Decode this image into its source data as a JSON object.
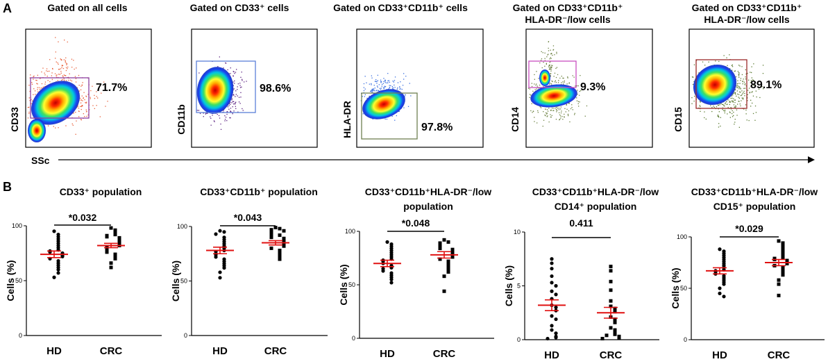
{
  "panel_a": {
    "letter": "A",
    "x_axis_label": "SSc",
    "plots": [
      {
        "title": [
          "Gated on all cells"
        ],
        "ylabel": "CD33",
        "gate_percent": "71.7%"
      },
      {
        "title": [
          "Gated on CD33⁺ cells"
        ],
        "ylabel": "CD11b",
        "gate_percent": "98.6%"
      },
      {
        "title": [
          "Gated on CD33⁺CD11b⁺ cells"
        ],
        "ylabel": "HLA-DR",
        "gate_percent": "97.8%"
      },
      {
        "title": [
          "Gated on CD33⁺CD11b⁺",
          "HLA-DR⁻/low cells"
        ],
        "ylabel": "CD14",
        "gate_percent": "9.3%"
      },
      {
        "title": [
          "Gated on CD33⁺CD11b⁺",
          "HLA-DR⁻/low cells"
        ],
        "ylabel": "CD15",
        "gate_percent": "89.1%"
      }
    ],
    "colors": {
      "gate_1": "#8b3fa0",
      "gate_2": "#5b7fd8",
      "gate_3": "#6e7f52",
      "gate_4": "#c84fc0",
      "gate_5": "#9a2a2a",
      "scatter_1": "#e8603a",
      "scatter_2": "#5a2080",
      "scatter_3": "#3a6fe0",
      "scatter_4": "#6b8040",
      "scatter_5": "#5a7a30"
    }
  },
  "panel_b": {
    "letter": "B",
    "ylabel": "Cells (%)",
    "mean_color": "#e01010",
    "point_color": "#000000"
  },
  "chart_data": [
    {
      "type": "scatter",
      "title": "CD33⁺ population",
      "xlabel": "",
      "ylabel": "Cells (%)",
      "categories": [
        "HD",
        "CRC"
      ],
      "ylim": [
        0,
        100
      ],
      "yticks": [
        0,
        50,
        100
      ],
      "p_value": "*0.032",
      "series": [
        {
          "name": "HD",
          "mean": 74,
          "sem": 3,
          "values": [
            95,
            92,
            90,
            88,
            86,
            84,
            82,
            80,
            78,
            77,
            76,
            75,
            74,
            73,
            72,
            70,
            68,
            66,
            64,
            62,
            60,
            57,
            53
          ]
        },
        {
          "name": "CRC",
          "mean": 82,
          "sem": 2,
          "values": [
            98,
            96,
            94,
            92,
            91,
            90,
            89,
            88,
            87,
            86,
            85,
            84,
            83,
            82,
            80,
            79,
            78,
            76,
            74,
            72,
            70,
            66,
            62
          ]
        }
      ]
    },
    {
      "type": "scatter",
      "title": "CD33⁺CD11b⁺ population",
      "xlabel": "",
      "ylabel": "Cells (%)",
      "categories": [
        "HD",
        "CRC"
      ],
      "ylim": [
        0,
        100
      ],
      "yticks": [
        0,
        50,
        100
      ],
      "p_value": "*0.043",
      "series": [
        {
          "name": "HD",
          "mean": 78,
          "sem": 3,
          "values": [
            96,
            95,
            93,
            90,
            88,
            86,
            84,
            82,
            80,
            78,
            77,
            75,
            74,
            72,
            70,
            68,
            66,
            64,
            62,
            58,
            53
          ]
        },
        {
          "name": "CRC",
          "mean": 85,
          "sem": 2,
          "values": [
            99,
            98,
            97,
            96,
            94,
            92,
            91,
            90,
            89,
            88,
            87,
            86,
            85,
            84,
            83,
            82,
            80,
            78,
            76,
            74,
            72,
            70
          ]
        }
      ]
    },
    {
      "type": "scatter",
      "title": "CD33⁺CD11b⁺HLA-DR⁻/low population",
      "xlabel": "",
      "ylabel": "Cells (%)",
      "categories": [
        "HD",
        "CRC"
      ],
      "ylim": [
        0,
        100
      ],
      "yticks": [
        0,
        50,
        100
      ],
      "p_value": "*0.048",
      "series": [
        {
          "name": "HD",
          "mean": 70,
          "sem": 3,
          "values": [
            90,
            88,
            86,
            84,
            82,
            80,
            78,
            76,
            74,
            73,
            72,
            70,
            68,
            66,
            65,
            63,
            61,
            59,
            57,
            55,
            52
          ]
        },
        {
          "name": "CRC",
          "mean": 78,
          "sem": 3,
          "values": [
            92,
            90,
            89,
            88,
            86,
            85,
            84,
            83,
            82,
            81,
            80,
            79,
            78,
            77,
            76,
            74,
            72,
            70,
            68,
            65,
            62,
            58,
            44
          ]
        }
      ]
    },
    {
      "type": "scatter",
      "title": "CD33⁺CD11b⁺HLA-DR⁻/low CD14⁺ population",
      "xlabel": "",
      "ylabel": "Cells (%)",
      "categories": [
        "HD",
        "CRC"
      ],
      "ylim": [
        0,
        10
      ],
      "yticks": [
        0,
        5,
        10
      ],
      "p_value": "0.411",
      "series": [
        {
          "name": "HD",
          "mean": 3.2,
          "sem": 0.5,
          "values": [
            7.5,
            7.1,
            6.6,
            5.9,
            5.3,
            5.0,
            4.5,
            4.2,
            3.8,
            3.2,
            3.0,
            2.7,
            2.2,
            1.9,
            1.3,
            0.9,
            0.6,
            0.3,
            0.2,
            0.1
          ]
        },
        {
          "name": "CRC",
          "mean": 2.5,
          "sem": 0.5,
          "values": [
            6.8,
            6.4,
            5.4,
            4.6,
            3.6,
            3.1,
            2.9,
            2.6,
            2.1,
            1.9,
            1.6,
            1.1,
            0.9,
            0.6,
            0.5,
            0.4,
            0.3,
            0.2,
            0.15,
            0.1
          ]
        }
      ]
    },
    {
      "type": "scatter",
      "title": "CD33⁺CD11b⁺HLA-DR⁻/low CD15⁺ population",
      "xlabel": "",
      "ylabel": "Cells (%)",
      "categories": [
        "HD",
        "CRC"
      ],
      "ylim": [
        0,
        100
      ],
      "yticks": [
        0,
        50,
        100
      ],
      "p_value": "*0.029",
      "series": [
        {
          "name": "HD",
          "mean": 67,
          "sem": 3,
          "values": [
            88,
            86,
            84,
            82,
            80,
            78,
            76,
            74,
            72,
            70,
            68,
            67,
            66,
            64,
            62,
            60,
            58,
            56,
            54,
            50,
            45,
            42
          ]
        },
        {
          "name": "CRC",
          "mean": 75,
          "sem": 3,
          "values": [
            96,
            94,
            92,
            90,
            88,
            86,
            84,
            82,
            80,
            79,
            78,
            77,
            76,
            75,
            74,
            72,
            70,
            68,
            66,
            63,
            58,
            54,
            43
          ]
        }
      ]
    }
  ]
}
